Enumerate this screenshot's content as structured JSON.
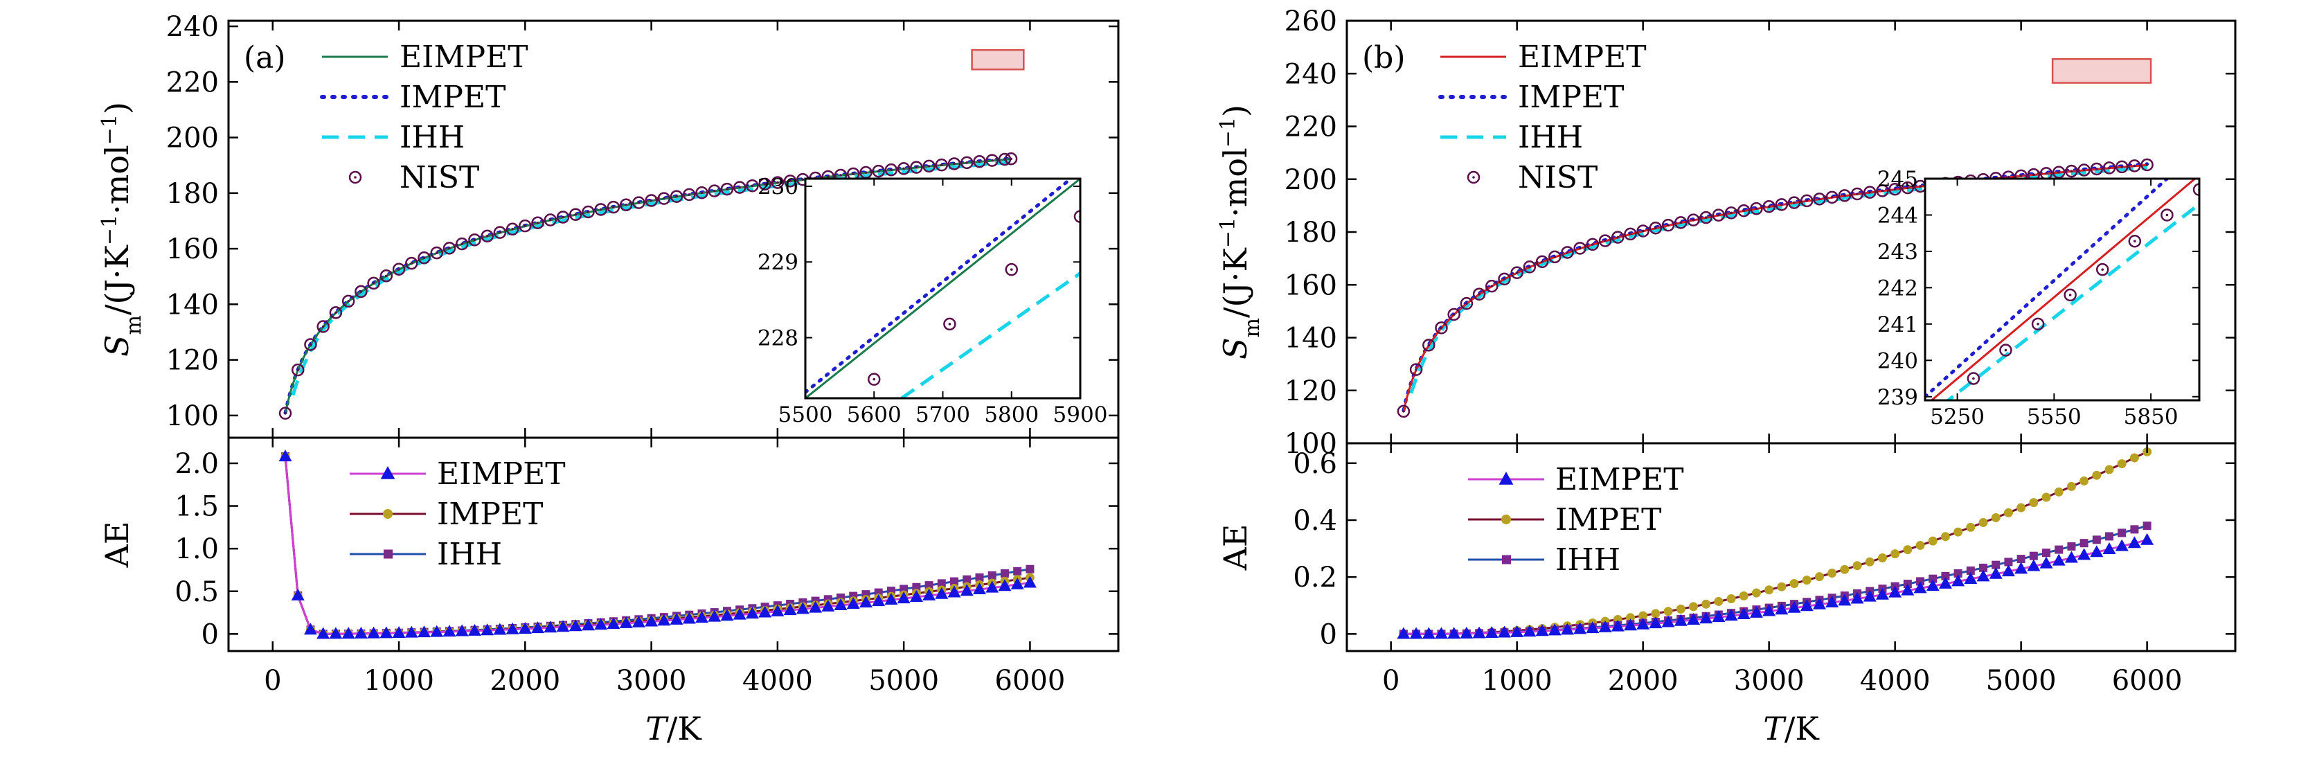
{
  "colors": {
    "eimpet_a": "#1b7a4e",
    "eimpet_b": "#d42020",
    "impet": "#1f1fd1",
    "ihh": "#18d4e8",
    "nist": "#5a0f4a",
    "ae_eimpet_line": "#d040d0",
    "ae_eimpet_marker": "#1414e0",
    "ae_impet_line": "#7a1030",
    "ae_impet_marker": "#b8a020",
    "ae_ihh_line": "#2050a8",
    "ae_ihh_marker": "#7a2a8a",
    "highlight": "#e07878"
  },
  "chart_data": [
    {
      "id": "a-top",
      "type": "line",
      "panel_label": "(a)",
      "ylabel_main": "S",
      "ylabel_sub": "m",
      "ylabel_rest": "/(J·K",
      "ylabel_sup1": "−1",
      "ylabel_mid": "·mol",
      "ylabel_sup2": "−1",
      "ylabel_end": ")",
      "xlim": [
        -350,
        6700
      ],
      "ylim": [
        92,
        242
      ],
      "yticks": [
        100,
        120,
        140,
        160,
        180,
        200,
        220,
        240
      ],
      "legend": [
        "EIMPET",
        "IMPET",
        "IHH",
        "NIST"
      ],
      "curve": {
        "A": 100.7,
        "B": 22.5,
        "T0": 100,
        "T1": 5850,
        "impet_offset": 0.25,
        "ihh_offset": -1.1,
        "ihh_start": 150,
        "ihh_start_offset": -3
      },
      "nist_x": [
        100,
        200,
        300,
        400,
        500,
        600,
        700,
        800,
        900,
        1000,
        1100,
        1200,
        1300,
        1400,
        1500,
        1600,
        1700,
        1800,
        1900,
        2000,
        2100,
        2200,
        2300,
        2400,
        2500,
        2600,
        2700,
        2800,
        2900,
        3000,
        3100,
        3200,
        3300,
        3400,
        3500,
        3600,
        3700,
        3800,
        3900,
        4000,
        4100,
        4200,
        4300,
        4400,
        4500,
        4600,
        4700,
        4800,
        4900,
        5000,
        5100,
        5200,
        5300,
        5400,
        5500,
        5600,
        5700,
        5800,
        5850
      ],
      "highlight_box": {
        "x0": 5540,
        "x1": 5950,
        "y0": 224.5,
        "y1": 231.5
      },
      "inset": {
        "xlim": [
          5500,
          5900
        ],
        "ylim": [
          227.2,
          230.1
        ],
        "xticks": [
          5500,
          5600,
          5700,
          5800,
          5900
        ],
        "yticks": [
          228,
          229,
          230
        ],
        "eimpet": [
          [
            5500,
            227.2
          ],
          [
            5900,
            230.1
          ]
        ],
        "impet": [
          [
            5500,
            227.28
          ],
          [
            5900,
            230.2
          ]
        ],
        "ihh": [
          [
            5640,
            227.2
          ],
          [
            5900,
            228.85
          ]
        ],
        "nist": [
          [
            5600,
            227.45
          ],
          [
            5710,
            228.18
          ],
          [
            5800,
            228.9
          ],
          [
            5900,
            229.6
          ]
        ]
      }
    },
    {
      "id": "a-bottom",
      "type": "line",
      "ylabel": "AE",
      "xlabel_main": "T",
      "xlabel_rest": "/K",
      "xlim": [
        -350,
        6700
      ],
      "ylim": [
        -0.2,
        2.3
      ],
      "yticks": [
        0,
        0.5,
        1.0,
        1.5,
        2.0
      ],
      "ytick_labels": [
        "0",
        "0.5",
        "1.0",
        "1.5",
        "2.0"
      ],
      "xticks": [
        0,
        1000,
        2000,
        3000,
        4000,
        5000,
        6000
      ],
      "legend": [
        "EIMPET",
        "IMPET",
        "IHH"
      ],
      "x": [
        100,
        200,
        300,
        400,
        500,
        600,
        700,
        800,
        900,
        1000,
        1100,
        1200,
        1300,
        1400,
        1500,
        1600,
        1700,
        1800,
        1900,
        2000,
        2100,
        2200,
        2300,
        2400,
        2500,
        2600,
        2700,
        2800,
        2900,
        3000,
        3100,
        3200,
        3300,
        3400,
        3500,
        3600,
        3700,
        3800,
        3900,
        4000,
        4100,
        4200,
        4300,
        4400,
        4500,
        4600,
        4700,
        4800,
        4900,
        5000,
        5100,
        5200,
        5300,
        5400,
        5500,
        5600,
        5700,
        5800,
        5900,
        6000
      ],
      "series_params": [
        {
          "name": "EIMPET",
          "start": [
            2.08,
            0.45,
            0.05
          ],
          "scale": 0.6
        },
        {
          "name": "IMPET",
          "start": [
            2.08,
            0.45,
            0.05
          ],
          "scale": 0.66
        },
        {
          "name": "IHH",
          "start": [
            2.08,
            0.45,
            0.05
          ],
          "scale": 0.76
        }
      ]
    },
    {
      "id": "b-top",
      "type": "line",
      "panel_label": "(b)",
      "ylabel_main": "S",
      "ylabel_sub": "m",
      "ylabel_rest": "/(J·K",
      "ylabel_sup1": "−1",
      "ylabel_mid": "·mol",
      "ylabel_sup2": "−1",
      "ylabel_end": ")",
      "xlim": [
        -350,
        6700
      ],
      "ylim": [
        100,
        260
      ],
      "yticks": [
        100,
        120,
        140,
        160,
        180,
        200,
        220,
        240,
        260
      ],
      "legend": [
        "EIMPET",
        "IMPET",
        "IHH",
        "NIST"
      ],
      "curve": {
        "A": 112,
        "B": 22.8,
        "T0": 100,
        "T1": 6000,
        "impet_offset": 0.4,
        "ihh_offset": -0.9,
        "ihh_start": 150,
        "ihh_start_offset": -3
      },
      "nist_x": [
        100,
        200,
        300,
        400,
        500,
        600,
        700,
        800,
        900,
        1000,
        1100,
        1200,
        1300,
        1400,
        1500,
        1600,
        1700,
        1800,
        1900,
        2000,
        2100,
        2200,
        2300,
        2400,
        2500,
        2600,
        2700,
        2800,
        2900,
        3000,
        3100,
        3200,
        3300,
        3400,
        3500,
        3600,
        3700,
        3800,
        3900,
        4000,
        4100,
        4200,
        4300,
        4400,
        4500,
        4600,
        4700,
        4800,
        4900,
        5000,
        5100,
        5200,
        5300,
        5400,
        5500,
        5600,
        5700,
        5800,
        5900,
        6000
      ],
      "highlight_box": {
        "x0": 5250,
        "x1": 6030,
        "y0": 236.5,
        "y1": 245.5
      },
      "inset": {
        "xlim": [
          5150,
          6000
        ],
        "ylim": [
          238.9,
          245
        ],
        "xticks": [
          5250,
          5550,
          5850
        ],
        "yticks": [
          239,
          240,
          241,
          242,
          243,
          244,
          245
        ],
        "eimpet": [
          [
            5150,
            238.75
          ],
          [
            6000,
            245.1
          ]
        ],
        "impet": [
          [
            5150,
            239.0
          ],
          [
            6000,
            245.8
          ]
        ],
        "ihh": [
          [
            5200,
            238.75
          ],
          [
            6000,
            244.3
          ]
        ],
        "nist": [
          [
            5300,
            239.5
          ],
          [
            5400,
            240.28
          ],
          [
            5500,
            241.0
          ],
          [
            5600,
            241.8
          ],
          [
            5700,
            242.5
          ],
          [
            5800,
            243.28
          ],
          [
            5900,
            244.0
          ],
          [
            6000,
            244.7
          ]
        ]
      }
    },
    {
      "id": "b-bottom",
      "type": "line",
      "ylabel": "AE",
      "xlabel_main": "T",
      "xlabel_rest": "/K",
      "xlim": [
        -350,
        6700
      ],
      "ylim": [
        -0.06,
        0.67
      ],
      "yticks": [
        0,
        0.2,
        0.4,
        0.6
      ],
      "ytick_labels": [
        "0",
        "0.2",
        "0.4",
        "0.6"
      ],
      "xticks": [
        0,
        1000,
        2000,
        3000,
        4000,
        5000,
        6000
      ],
      "legend": [
        "EIMPET",
        "IMPET",
        "IHH"
      ],
      "x": [
        100,
        200,
        300,
        400,
        500,
        600,
        700,
        800,
        900,
        1000,
        1100,
        1200,
        1300,
        1400,
        1500,
        1600,
        1700,
        1800,
        1900,
        2000,
        2100,
        2200,
        2300,
        2400,
        2500,
        2600,
        2700,
        2800,
        2900,
        3000,
        3100,
        3200,
        3300,
        3400,
        3500,
        3600,
        3700,
        3800,
        3900,
        4000,
        4100,
        4200,
        4300,
        4400,
        4500,
        4600,
        4700,
        4800,
        4900,
        5000,
        5100,
        5200,
        5300,
        5400,
        5500,
        5600,
        5700,
        5800,
        5900,
        6000
      ],
      "series_params": [
        {
          "name": "EIMPET",
          "start": [
            0,
            0,
            0
          ],
          "scale": 0.33
        },
        {
          "name": "IMPET",
          "start": [
            0,
            0,
            0
          ],
          "scale": 0.64
        },
        {
          "name": "IHH",
          "start": [
            0,
            0,
            0
          ],
          "scale": 0.38
        }
      ]
    }
  ]
}
